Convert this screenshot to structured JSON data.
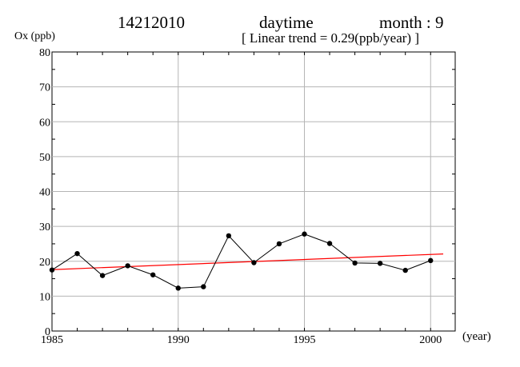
{
  "header": {
    "station": "14212010",
    "period": "daytime",
    "month_label": "month : 9",
    "trend_label": "[ Linear trend = 0.29(ppb/year) ]"
  },
  "chart_data": {
    "type": "line",
    "title": "",
    "ylabel": "Ox (ppb)",
    "xlabel": "(year)",
    "xlim": [
      1985,
      2001
    ],
    "ylim": [
      0,
      80
    ],
    "x_ticks": [
      1985,
      1990,
      1995,
      2000
    ],
    "y_ticks": [
      0,
      10,
      20,
      30,
      40,
      50,
      60,
      70,
      80
    ],
    "grid": true,
    "series": [
      {
        "x": [
          1985,
          1986,
          1987,
          1988,
          1989,
          1990,
          1991,
          1992,
          1993,
          1994,
          1995,
          1996,
          1997,
          1998,
          1999,
          2000
        ],
        "values": [
          17.5,
          22.2,
          15.9,
          18.7,
          16.1,
          12.3,
          12.7,
          27.3,
          19.6,
          25.0,
          27.8,
          25.1,
          19.5,
          19.4,
          17.4,
          20.2
        ],
        "color": "#000000"
      }
    ],
    "trend_line": {
      "x": [
        1985,
        2000.5
      ],
      "values": [
        17.6,
        22.1
      ],
      "color": "#ff0000"
    }
  }
}
